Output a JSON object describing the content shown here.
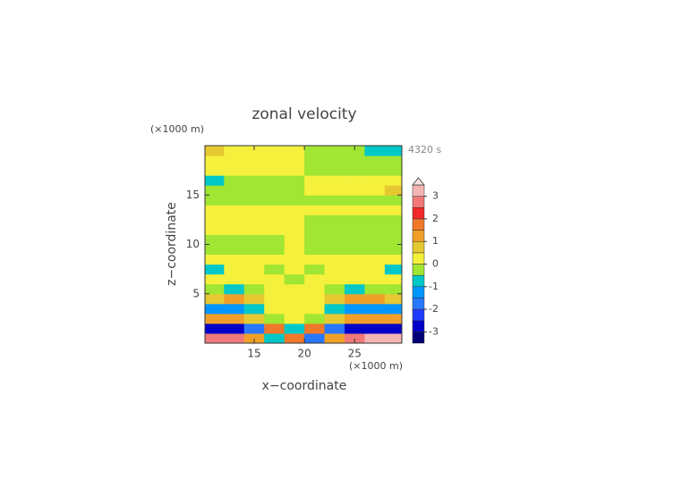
{
  "chart_data": {
    "type": "contour",
    "title": "zonal velocity",
    "xlabel": "x−coordinate",
    "ylabel": "z−coordinate",
    "xunit": "(×1000 m)",
    "yunit": "(×1000 m)",
    "annotation": "4320 s",
    "xlim": [
      10.1,
      29.7
    ],
    "ylim": [
      0,
      20
    ],
    "xticks": [
      15,
      20,
      25
    ],
    "yticks": [
      5,
      10,
      15
    ],
    "x": [
      11,
      13,
      15,
      17,
      19,
      21,
      23,
      25,
      27,
      29
    ],
    "y": [
      0.5,
      1.5,
      2.5,
      3.5,
      4.5,
      5.5,
      6.5,
      7.5,
      8.5,
      9.5,
      10.5,
      11.5,
      12.5,
      13.5,
      14.5,
      15.5,
      16.5,
      17.5,
      18.5,
      19.5
    ],
    "z": [
      [
        2.5,
        2.5,
        1,
        -1,
        1.5,
        -2,
        1,
        2.5,
        3,
        3
      ],
      [
        -3,
        -3,
        -2,
        1.5,
        -1,
        1.5,
        -2,
        -3,
        -3,
        -3
      ],
      [
        1,
        1,
        0.8,
        -0.5,
        0.3,
        -0.5,
        0.8,
        1,
        1.2,
        1
      ],
      [
        -1.2,
        -1.5,
        -1,
        0.3,
        0.2,
        0.3,
        -1,
        -1.5,
        -1.5,
        -1.2
      ],
      [
        0.6,
        1.2,
        0.8,
        0.2,
        0.2,
        0.2,
        0.8,
        1.2,
        1,
        0.6
      ],
      [
        -0.3,
        -0.6,
        -0.4,
        0.2,
        0.2,
        0.2,
        -0.4,
        -0.6,
        -0.3,
        -0.3
      ],
      [
        0.2,
        0.3,
        0.2,
        0.2,
        -0.2,
        0.2,
        0.2,
        0.3,
        0.3,
        0.2
      ],
      [
        -0.6,
        0.2,
        0.2,
        -0.2,
        0.2,
        -0.2,
        0.2,
        0.2,
        0.2,
        -0.6
      ],
      [
        0.2,
        0.2,
        0.2,
        0.2,
        0.2,
        0.2,
        0.2,
        0.2,
        0.2,
        0.2
      ],
      [
        -0.2,
        -0.2,
        -0.2,
        -0.2,
        0.2,
        -0.2,
        -0.2,
        -0.2,
        -0.2,
        -0.2
      ],
      [
        -0.2,
        -0.2,
        -0.2,
        -0.2,
        0.2,
        -0.2,
        -0.2,
        -0.2,
        -0.2,
        -0.2
      ],
      [
        0.2,
        0.2,
        0.2,
        0.2,
        0.2,
        -0.2,
        -0.2,
        -0.2,
        -0.2,
        -0.2
      ],
      [
        0.2,
        0.2,
        0.2,
        0.2,
        0.2,
        -0.2,
        -0.2,
        -0.2,
        -0.2,
        -0.2
      ],
      [
        0.2,
        0.2,
        0.2,
        0.2,
        0.2,
        0.2,
        0.2,
        0.2,
        0.2,
        0.2
      ],
      [
        -0.2,
        -0.2,
        -0.2,
        -0.2,
        -0.2,
        -0.2,
        -0.2,
        -0.2,
        -0.2,
        -0.2
      ],
      [
        -0.2,
        -0.2,
        -0.2,
        -0.2,
        -0.2,
        0.2,
        0.2,
        0.2,
        0.2,
        0.6
      ],
      [
        -0.6,
        -0.2,
        -0.2,
        -0.2,
        -0.2,
        0.2,
        0.2,
        0.2,
        0.2,
        0.2
      ],
      [
        0.2,
        0.2,
        0.2,
        0.2,
        0.2,
        -0.2,
        -0.2,
        -0.2,
        -0.2,
        -0.2
      ],
      [
        0.2,
        0.2,
        0.2,
        0.2,
        0.2,
        -0.2,
        -0.2,
        -0.2,
        -0.2,
        -0.2
      ],
      [
        0.6,
        0.2,
        0.2,
        0.2,
        0.2,
        -0.2,
        -0.2,
        -0.2,
        -0.6,
        -0.6
      ]
    ],
    "colorbar": {
      "levels": [
        -3.5,
        -3,
        -2.5,
        -2,
        -1.5,
        -1,
        -0.5,
        0,
        0.5,
        1,
        1.5,
        2,
        2.5,
        3,
        3.5
      ],
      "colors": [
        "#000078",
        "#0000c8",
        "#1e3cff",
        "#2878ff",
        "#0096ff",
        "#00c8c8",
        "#a0e632",
        "#f5f03c",
        "#e6c832",
        "#f0a028",
        "#f07828",
        "#f02828",
        "#f07878",
        "#f5b4b4"
      ],
      "extend_color": "#f8e0e0",
      "ticks": [
        -3,
        -2,
        -1,
        0,
        1,
        2,
        3
      ]
    }
  }
}
